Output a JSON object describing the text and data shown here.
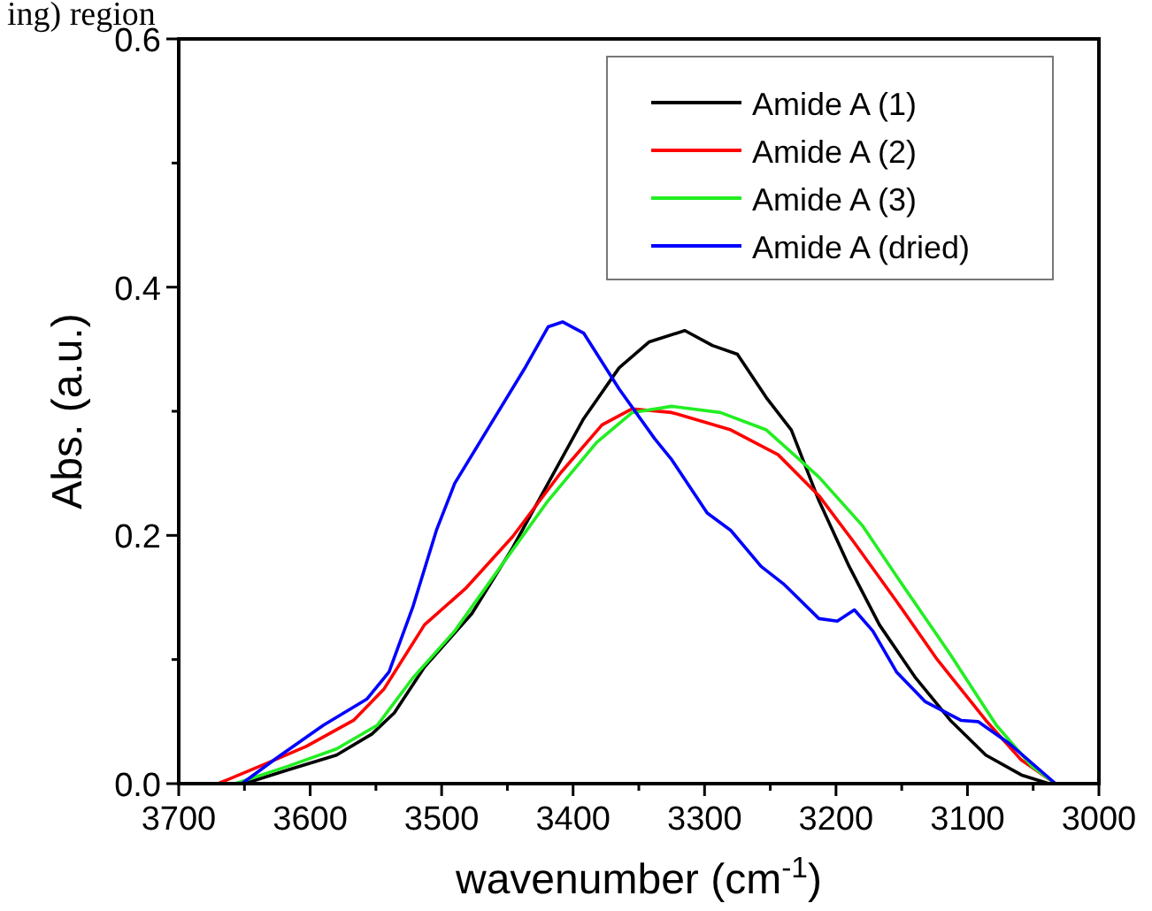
{
  "chart_data": {
    "type": "line",
    "title": "ing) region",
    "xlabel": "wavenumber (cm$^{-1}$)",
    "ylabel": "Abs. (a.u.)",
    "xlim": [
      3700,
      3000
    ],
    "ylim": [
      0,
      0.6
    ],
    "xticks": [
      3700,
      {
        "value": 3650,
        "label": null
      },
      3600,
      {
        "value": 3550,
        "label": null
      },
      3500,
      {
        "value": 3450,
        "label": null
      },
      3400,
      {
        "value": 3350,
        "label": null
      },
      3300,
      {
        "value": 3250,
        "label": null
      },
      3200,
      {
        "value": 3150,
        "label": null
      },
      3100,
      {
        "value": 3050,
        "label": null
      },
      3000
    ],
    "yticks": [
      {
        "value": 0,
        "label": "0.0"
      },
      {
        "value": 0.1,
        "label": null
      },
      {
        "value": 0.2,
        "label": "0.2"
      },
      {
        "value": 0.3,
        "label": null
      },
      {
        "value": 0.4,
        "label": "0.4"
      },
      {
        "value": 0.5,
        "label": null
      },
      {
        "value": 0.6,
        "label": "0.6"
      }
    ],
    "grid": false,
    "legend": "top right",
    "marker": "none",
    "line_style": "solid",
    "series": [
      {
        "name": "Amide A (1)",
        "color": "#000000",
        "x": [
          3650,
          3617,
          3580,
          3553,
          3536,
          3513,
          3477,
          3446,
          3419,
          3392,
          3365,
          3342,
          3315,
          3294,
          3275,
          3253,
          3234,
          3213,
          3190,
          3167,
          3140,
          3113,
          3086,
          3059,
          3038
        ],
        "values": [
          0,
          0.011,
          0.023,
          0.04,
          0.057,
          0.094,
          0.137,
          0.19,
          0.242,
          0.294,
          0.335,
          0.356,
          0.365,
          0.353,
          0.346,
          0.311,
          0.285,
          0.228,
          0.175,
          0.128,
          0.086,
          0.051,
          0.023,
          0.007,
          0
        ]
      },
      {
        "name": "Amide A (2)",
        "color": "#ff0000",
        "x": [
          3670,
          3634,
          3603,
          3567,
          3544,
          3513,
          3482,
          3446,
          3409,
          3378,
          3355,
          3325,
          3280,
          3244,
          3213,
          3186,
          3154,
          3123,
          3086,
          3059,
          3033
        ],
        "values": [
          0,
          0.016,
          0.03,
          0.051,
          0.076,
          0.128,
          0.157,
          0.199,
          0.251,
          0.289,
          0.302,
          0.299,
          0.285,
          0.265,
          0.232,
          0.194,
          0.147,
          0.1,
          0.051,
          0.019,
          0
        ]
      },
      {
        "name": "Amide A (3)",
        "color": "#22ee22",
        "x": [
          3657,
          3617,
          3580,
          3549,
          3522,
          3490,
          3455,
          3419,
          3382,
          3355,
          3325,
          3288,
          3253,
          3213,
          3180,
          3150,
          3113,
          3078,
          3051,
          3033
        ],
        "values": [
          0,
          0.014,
          0.028,
          0.047,
          0.085,
          0.123,
          0.175,
          0.228,
          0.275,
          0.299,
          0.304,
          0.299,
          0.285,
          0.247,
          0.208,
          0.161,
          0.104,
          0.047,
          0.014,
          0
        ]
      },
      {
        "name": "Amide A (dried)",
        "color": "#0000ff",
        "x": [
          3652,
          3625,
          3590,
          3557,
          3540,
          3522,
          3504,
          3490,
          3463,
          3436,
          3419,
          3408,
          3392,
          3365,
          3338,
          3325,
          3298,
          3280,
          3257,
          3240,
          3213,
          3199,
          3186,
          3172,
          3154,
          3132,
          3105,
          3092,
          3069,
          3033
        ],
        "values": [
          0,
          0.021,
          0.047,
          0.068,
          0.09,
          0.142,
          0.204,
          0.242,
          0.289,
          0.336,
          0.368,
          0.372,
          0.363,
          0.318,
          0.278,
          0.261,
          0.218,
          0.204,
          0.175,
          0.161,
          0.133,
          0.131,
          0.14,
          0.123,
          0.09,
          0.066,
          0.051,
          0.05,
          0.033,
          0
        ]
      }
    ]
  }
}
